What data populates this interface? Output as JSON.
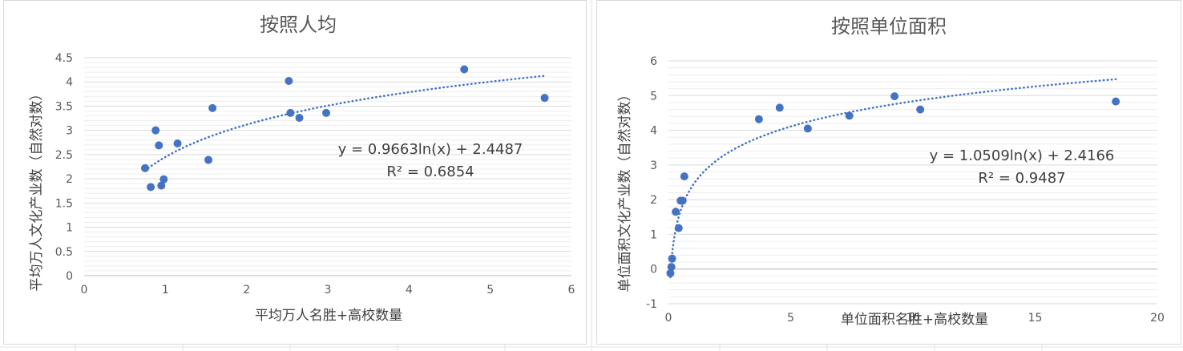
{
  "chart_data": [
    {
      "type": "scatter",
      "title": "按照人均",
      "xlabel": "平均万人名胜+高校数量",
      "ylabel": "平均万人文化产业数（自然对数）",
      "xlim": [
        0,
        6
      ],
      "ylim": [
        0,
        4.5
      ],
      "x_ticks": [
        "0",
        "1",
        "2",
        "3",
        "4",
        "5",
        "6"
      ],
      "y_ticks": [
        "0",
        "0.5",
        "1",
        "1.5",
        "2",
        "2.5",
        "3",
        "3.5",
        "4",
        "4.5"
      ],
      "grid": "horizontal",
      "color": "#4472c4",
      "points": [
        {
          "x": 0.75,
          "y": 2.22
        },
        {
          "x": 0.82,
          "y": 1.83
        },
        {
          "x": 0.88,
          "y": 3.0
        },
        {
          "x": 0.92,
          "y": 2.69
        },
        {
          "x": 0.95,
          "y": 1.86
        },
        {
          "x": 0.98,
          "y": 1.99
        },
        {
          "x": 1.15,
          "y": 2.73
        },
        {
          "x": 1.53,
          "y": 2.39
        },
        {
          "x": 1.58,
          "y": 3.46
        },
        {
          "x": 2.52,
          "y": 4.02
        },
        {
          "x": 2.54,
          "y": 3.36
        },
        {
          "x": 2.65,
          "y": 3.26
        },
        {
          "x": 2.98,
          "y": 3.36
        },
        {
          "x": 4.68,
          "y": 4.26
        },
        {
          "x": 5.67,
          "y": 3.67
        }
      ],
      "trendline": {
        "type": "log",
        "a": 0.9663,
        "b": 2.4487,
        "x_range": [
          0.75,
          5.67
        ]
      },
      "equation": "y = 0.9663ln(x) + 2.4487",
      "r_squared": "R² = 0.6854"
    },
    {
      "type": "scatter",
      "title": "按照单位面积",
      "xlabel": "单位面积名胜+高校数量",
      "ylabel": "单位面积文化产业数（自然对数）",
      "xlim": [
        0,
        20
      ],
      "ylim": [
        -1,
        6
      ],
      "x_ticks": [
        "0",
        "5",
        "10",
        "15",
        "20"
      ],
      "y_ticks": [
        "-1",
        "0",
        "1",
        "2",
        "3",
        "4",
        "5",
        "6"
      ],
      "grid": "horizontal",
      "color": "#4472c4",
      "points": [
        {
          "x": 0.08,
          "y": -0.12
        },
        {
          "x": 0.12,
          "y": 0.06
        },
        {
          "x": 0.15,
          "y": 0.3
        },
        {
          "x": 0.3,
          "y": 1.65
        },
        {
          "x": 0.42,
          "y": 1.18
        },
        {
          "x": 0.5,
          "y": 1.97
        },
        {
          "x": 0.58,
          "y": 1.97
        },
        {
          "x": 0.65,
          "y": 2.67
        },
        {
          "x": 3.7,
          "y": 4.32
        },
        {
          "x": 4.55,
          "y": 4.65
        },
        {
          "x": 5.7,
          "y": 4.05
        },
        {
          "x": 7.4,
          "y": 4.42
        },
        {
          "x": 9.25,
          "y": 4.98
        },
        {
          "x": 10.3,
          "y": 4.6
        },
        {
          "x": 18.3,
          "y": 4.83
        }
      ],
      "trendline": {
        "type": "log",
        "a": 1.0509,
        "b": 2.4166,
        "x_range": [
          0.08,
          18.3
        ]
      },
      "equation": "y = 1.0509ln(x) + 2.4166",
      "r_squared": "R² = 0.9487"
    }
  ]
}
